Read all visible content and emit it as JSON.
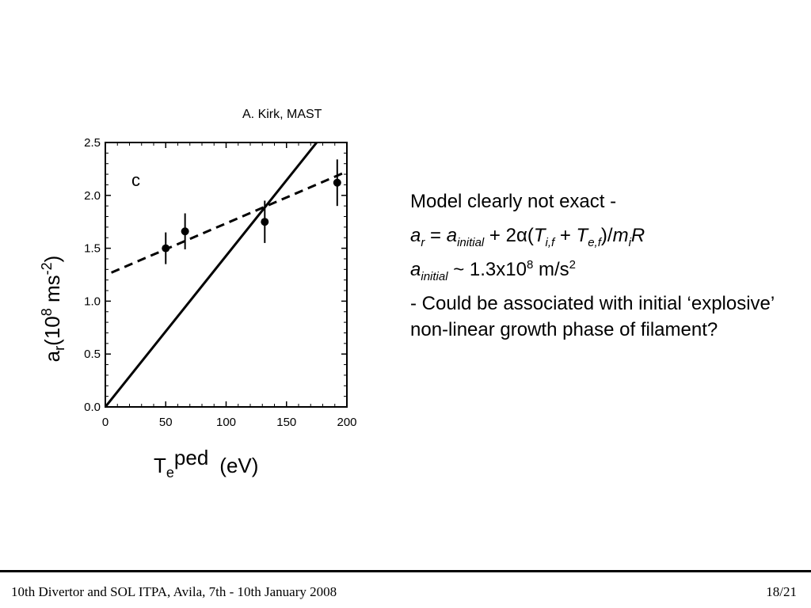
{
  "figure_credit": "A. Kirk, MAST",
  "chart_data": {
    "type": "scatter",
    "panel_label": "c",
    "xlabel": {
      "base": "T",
      "sub": "e",
      "sup": "ped",
      "unit": "(eV)"
    },
    "ylabel": {
      "base": "a",
      "sub": "r",
      "unit_open": "(10",
      "unit_sup": "8",
      "unit_mid": " ms",
      "unit_sup2": "-2",
      "unit_close": ")"
    },
    "xlim": [
      0,
      200
    ],
    "ylim": [
      0,
      2.5
    ],
    "x_ticks": [
      0,
      50,
      100,
      150,
      200
    ],
    "y_ticks": [
      0.0,
      0.5,
      1.0,
      1.5,
      2.0,
      2.5
    ],
    "x_tick_labels": [
      "0",
      "50",
      "100",
      "150",
      "200"
    ],
    "y_tick_labels": [
      "0.0",
      "0.5",
      "1.0",
      "1.5",
      "2.0",
      "2.5"
    ],
    "points": [
      {
        "x": 50,
        "y": 1.5,
        "err": 0.15
      },
      {
        "x": 66,
        "y": 1.66,
        "err": 0.17
      },
      {
        "x": 132,
        "y": 1.75,
        "err": 0.2
      },
      {
        "x": 192,
        "y": 2.12,
        "err": 0.22
      }
    ],
    "lines": [
      {
        "style": "solid",
        "x": [
          0,
          175
        ],
        "y": [
          0,
          2.5
        ]
      },
      {
        "style": "dashed",
        "x": [
          5,
          203
        ],
        "y": [
          1.27,
          2.24
        ]
      }
    ]
  },
  "text": {
    "line1": "Model clearly not exact -",
    "eq": {
      "a": "a",
      "r": "r",
      "eq_sign": " = ",
      "a2": "a",
      "initial": "initial",
      "plus": " + 2",
      "alpha": "α",
      "open": "(",
      "T": "T",
      "if": "i,f",
      "plus2": " + ",
      "T2": "T",
      "ef": "e,f",
      "close": ")/",
      "m": "m",
      "i": "i",
      "R": "R"
    },
    "value": {
      "a": "a",
      "initial": "initial",
      "rest": " ~ 1.3x10",
      "exp": "8",
      "unit": " m/s",
      "unit_exp": "2"
    },
    "line4": "- Could be associated with initial ‘explosive’ non-linear growth phase of filament?"
  },
  "footer": {
    "left": "10th Divertor and SOL ITPA, Avila, 7th - 10th January 2008",
    "right": "18/21"
  }
}
